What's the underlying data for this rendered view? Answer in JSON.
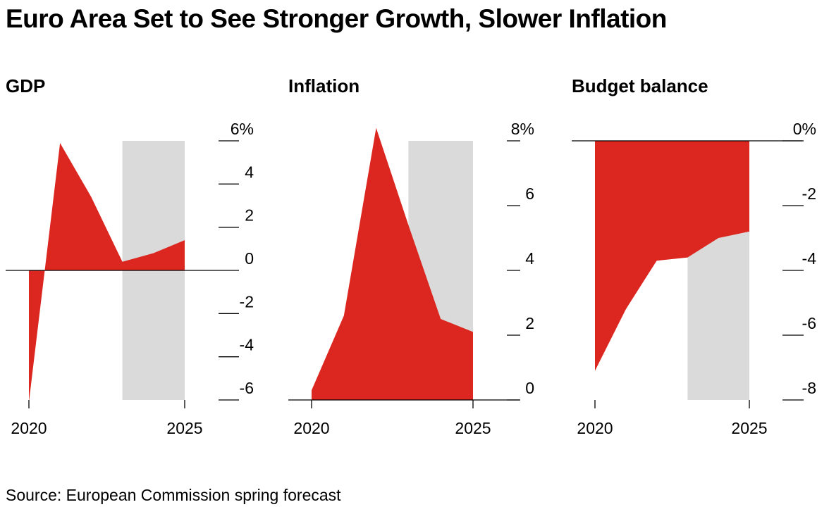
{
  "title": "Euro Area Set to See Stronger Growth, Slower Inflation",
  "source": "Source: European Commission spring forecast",
  "colors": {
    "fill": "#dc2721",
    "forecast_band": "#dadada",
    "axis": "#000000"
  },
  "chart_data": [
    {
      "type": "area",
      "title": "GDP",
      "x": [
        2020,
        2020.5,
        2021,
        2022,
        2023,
        2024,
        2025
      ],
      "values": [
        -6.1,
        -0.1,
        5.9,
        3.4,
        0.4,
        0.8,
        1.4
      ],
      "ylim": [
        -6,
        6
      ],
      "yticks": [
        6,
        4,
        2,
        0,
        -2,
        -4,
        -6
      ],
      "ytick_labels": [
        "6%",
        "4",
        "2",
        "0",
        "-2",
        "-4",
        "-6"
      ],
      "xticks": [
        2020,
        2025
      ],
      "xtick_labels": [
        "2020",
        "2025"
      ],
      "forecast_range": [
        2023,
        2025
      ],
      "grid": false
    },
    {
      "type": "area",
      "title": "Inflation",
      "x": [
        2020,
        2021,
        2022,
        2023,
        2024,
        2025
      ],
      "values": [
        0.3,
        2.6,
        8.4,
        5.4,
        2.5,
        2.1
      ],
      "ylim": [
        0,
        8
      ],
      "yticks": [
        8,
        6,
        4,
        2,
        0
      ],
      "ytick_labels": [
        "8%",
        "6",
        "4",
        "2",
        "0"
      ],
      "xticks": [
        2020,
        2025
      ],
      "xtick_labels": [
        "2020",
        "2025"
      ],
      "forecast_range": [
        2023,
        2025
      ],
      "grid": false
    },
    {
      "type": "area",
      "title": "Budget balance",
      "x": [
        2020,
        2021,
        2022,
        2023,
        2024,
        2025
      ],
      "values": [
        -7.1,
        -5.2,
        -3.7,
        -3.6,
        -3.0,
        -2.8
      ],
      "ylim": [
        -8,
        0
      ],
      "yticks": [
        0,
        -2,
        -4,
        -6,
        -8
      ],
      "ytick_labels": [
        "0%",
        "-2",
        "-4",
        "-6",
        "-8"
      ],
      "xticks": [
        2020,
        2025
      ],
      "xtick_labels": [
        "2020",
        "2025"
      ],
      "forecast_range": [
        2023,
        2025
      ],
      "grid": false
    }
  ]
}
